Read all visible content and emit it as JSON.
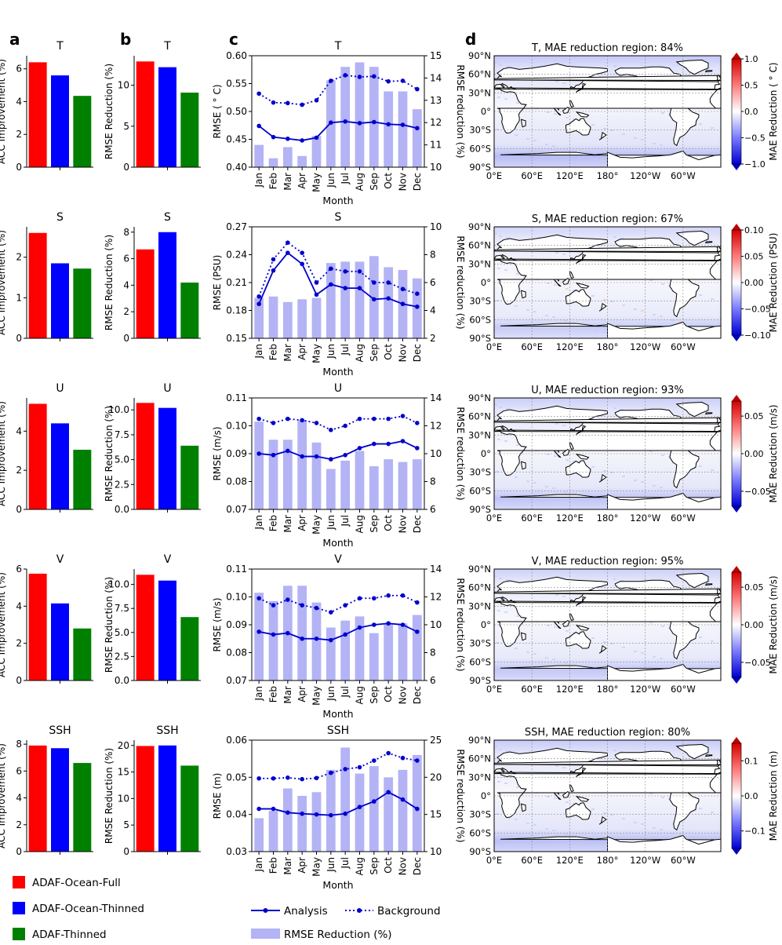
{
  "figure": {
    "panel_labels": [
      "a",
      "b",
      "c",
      "d"
    ],
    "variables": [
      "T",
      "S",
      "U",
      "V",
      "SSH"
    ],
    "legend_bars": [
      "ADAF-Ocean-Full",
      "ADAF-Ocean-Thinned",
      "ADAF-Thinned"
    ],
    "legend_lines": {
      "analysis": "Analysis",
      "background": "Background",
      "reduction": "RMSE Reduction (%)"
    },
    "month_label": "Month",
    "acc_ylabel": "ACC Improvement (%)",
    "rmse_bar_ylabel": "RMSE Reduction (%)",
    "rmse_right_ylabel": "RMSE reduction (%)",
    "map_lat_labels": [
      "90°N",
      "60°N",
      "30°N",
      "0°",
      "30°S",
      "60°S",
      "90°S"
    ],
    "map_lon_labels": [
      "0°E",
      "60°E",
      "120°E",
      "180°",
      "120°W",
      "60°W"
    ]
  },
  "colors": {
    "full": "#ff0000",
    "thinned": "#0000ff",
    "adaf_thinned": "#008000",
    "reduction_bar": "#b3b3f5",
    "line": "#0000cc"
  },
  "chart_data": [
    {
      "type": "bar",
      "panel": "a",
      "title": "T",
      "ylabel": "ACC Improvement (%)",
      "categories": [
        "ADAF-Ocean-Full",
        "ADAF-Ocean-Thinned",
        "ADAF-Thinned"
      ],
      "values": [
        6.4,
        5.6,
        4.35
      ],
      "ylim": [
        0,
        6.8
      ],
      "yticks": [
        0,
        2,
        4,
        6
      ]
    },
    {
      "type": "bar",
      "panel": "b",
      "title": "T",
      "ylabel": "RMSE Reduction (%)",
      "categories": [
        "ADAF-Ocean-Full",
        "ADAF-Ocean-Thinned",
        "ADAF-Thinned"
      ],
      "values": [
        12.9,
        12.2,
        9.1
      ],
      "ylim": [
        0,
        13.6
      ],
      "yticks": [
        0,
        5,
        10
      ]
    },
    {
      "type": "line+bar",
      "panel": "c",
      "title": "T",
      "ylabel": "RMSE ( ° C)",
      "ylabel2": "RMSE reduction (%)",
      "categories": [
        "Jan",
        "Feb",
        "Mar",
        "Apr",
        "May",
        "Jun",
        "Jul",
        "Aug",
        "Sep",
        "Oct",
        "Nov",
        "Dec"
      ],
      "ylim": [
        0.4,
        0.6
      ],
      "yticks": [
        "0.40",
        "0.45",
        "0.50",
        "0.55",
        "0.60"
      ],
      "y2lim": [
        10,
        15
      ],
      "y2ticks": [
        "10",
        "11",
        "12",
        "13",
        "14",
        "15"
      ],
      "analysis": [
        0.474,
        0.454,
        0.451,
        0.448,
        0.453,
        0.48,
        0.482,
        0.479,
        0.481,
        0.477,
        0.476,
        0.47
      ],
      "background": [
        0.532,
        0.516,
        0.515,
        0.512,
        0.52,
        0.555,
        0.565,
        0.562,
        0.563,
        0.554,
        0.555,
        0.54
      ],
      "reduction": [
        11.0,
        10.4,
        10.9,
        10.5,
        11.4,
        13.9,
        14.5,
        14.7,
        14.5,
        13.4,
        13.4,
        12.6
      ]
    },
    {
      "type": "heatmap-map",
      "panel": "d",
      "title": "T, MAE reduction region: 84%",
      "colorbar_label": "MAE Reduction ( ° C)",
      "clim": [
        -1.0,
        1.0
      ],
      "colorbar_ticks": [
        "1.0",
        "0.5",
        "0.0",
        "−0.5",
        "−1.0"
      ],
      "intensity": 0.35
    },
    {
      "type": "bar",
      "panel": "a",
      "title": "S",
      "ylabel": "ACC Improvement (%)",
      "categories": [
        "ADAF-Ocean-Full",
        "ADAF-Ocean-Thinned",
        "ADAF-Thinned"
      ],
      "values": [
        2.6,
        1.85,
        1.72
      ],
      "ylim": [
        0,
        2.75
      ],
      "yticks": [
        0,
        1,
        2
      ]
    },
    {
      "type": "bar",
      "panel": "b",
      "title": "S",
      "ylabel": "RMSE Reduction (%)",
      "categories": [
        "ADAF-Ocean-Full",
        "ADAF-Ocean-Thinned",
        "ADAF-Thinned"
      ],
      "values": [
        6.7,
        8.0,
        4.2
      ],
      "ylim": [
        0,
        8.4
      ],
      "yticks": [
        0,
        2,
        4,
        6,
        8
      ]
    },
    {
      "type": "line+bar",
      "panel": "c",
      "title": "S",
      "ylabel": "RMSE (PSU)",
      "ylabel2": "RMSE reduction (%)",
      "categories": [
        "Jan",
        "Feb",
        "Mar",
        "Apr",
        "May",
        "Jun",
        "Jul",
        "Aug",
        "Sep",
        "Oct",
        "Nov",
        "Dec"
      ],
      "ylim": [
        0.15,
        0.27
      ],
      "yticks": [
        "0.15",
        "0.18",
        "0.21",
        "0.24",
        "0.27"
      ],
      "y2lim": [
        2,
        10
      ],
      "y2ticks": [
        "2",
        "4",
        "6",
        "8",
        "10"
      ],
      "analysis": [
        0.187,
        0.223,
        0.242,
        0.23,
        0.197,
        0.208,
        0.204,
        0.204,
        0.192,
        0.193,
        0.187,
        0.184
      ],
      "background": [
        0.195,
        0.235,
        0.253,
        0.242,
        0.21,
        0.225,
        0.222,
        0.222,
        0.21,
        0.21,
        0.203,
        0.198
      ],
      "reduction": [
        4.9,
        5.0,
        4.6,
        4.8,
        4.9,
        7.4,
        7.5,
        7.5,
        7.9,
        7.1,
        6.9,
        6.3
      ]
    },
    {
      "type": "heatmap-map",
      "panel": "d",
      "title": "S, MAE reduction region: 67%",
      "colorbar_label": "MAE Reduction (PSU)",
      "clim": [
        -0.1,
        0.1
      ],
      "colorbar_ticks": [
        "0.10",
        "0.05",
        "0.00",
        "−0.05",
        "−0.10"
      ],
      "intensity": 0.15
    },
    {
      "type": "bar",
      "panel": "a",
      "title": "U",
      "ylabel": "ACC Improvement (%)",
      "categories": [
        "ADAF-Ocean-Full",
        "ADAF-Ocean-Thinned",
        "ADAF-Thinned"
      ],
      "values": [
        5.4,
        4.4,
        3.05
      ],
      "ylim": [
        0,
        5.7
      ],
      "yticks": [
        0,
        2,
        4
      ]
    },
    {
      "type": "bar",
      "panel": "b",
      "title": "U",
      "ylabel": "RMSE Reduction (%)",
      "categories": [
        "ADAF-Ocean-Full",
        "ADAF-Ocean-Thinned",
        "ADAF-Thinned"
      ],
      "values": [
        10.7,
        10.2,
        6.4
      ],
      "ylim": [
        0,
        11.2
      ],
      "yticks": [
        "0.0",
        "2.5",
        "5.0",
        "7.5",
        "10.0"
      ]
    },
    {
      "type": "line+bar",
      "panel": "c",
      "title": "U",
      "ylabel": "RMSE (m/s)",
      "ylabel2": "RMSE reduction (%)",
      "categories": [
        "Jan",
        "Feb",
        "Mar",
        "Apr",
        "May",
        "Jun",
        "Jul",
        "Aug",
        "Sep",
        "Oct",
        "Nov",
        "Dec"
      ],
      "ylim": [
        0.07,
        0.11
      ],
      "yticks": [
        "0.07",
        "0.08",
        "0.09",
        "0.10",
        "0.11"
      ],
      "y2lim": [
        6,
        14
      ],
      "y2ticks": [
        "6",
        "8",
        "10",
        "12",
        "14"
      ],
      "analysis": [
        0.09,
        0.0895,
        0.091,
        0.089,
        0.089,
        0.088,
        0.0895,
        0.092,
        0.0935,
        0.0935,
        0.0945,
        0.092
      ],
      "background": [
        0.1025,
        0.101,
        0.1025,
        0.102,
        0.101,
        0.0985,
        0.1,
        0.1025,
        0.1025,
        0.1025,
        0.1035,
        0.101
      ],
      "reduction": [
        12.3,
        11.0,
        11.0,
        12.4,
        10.8,
        8.9,
        9.5,
        10.2,
        9.1,
        9.6,
        9.4,
        9.6
      ]
    },
    {
      "type": "heatmap-map",
      "panel": "d",
      "title": "U, MAE reduction region: 93%",
      "colorbar_label": "MAE Reduction (m/s)",
      "clim": [
        -0.07,
        0.07
      ],
      "colorbar_ticks": [
        "0.05",
        "0.00",
        "−0.05"
      ],
      "intensity": 0.25
    },
    {
      "type": "bar",
      "panel": "a",
      "title": "V",
      "ylabel": "ACC Improvement (%)",
      "categories": [
        "ADAF-Ocean-Full",
        "ADAF-Ocean-Thinned",
        "ADAF-Thinned"
      ],
      "values": [
        5.75,
        4.15,
        2.8
      ],
      "ylim": [
        0,
        6.0
      ],
      "yticks": [
        0,
        2,
        4,
        6
      ]
    },
    {
      "type": "bar",
      "panel": "b",
      "title": "V",
      "ylabel": "RMSE Reduction (%)",
      "categories": [
        "ADAF-Ocean-Full",
        "ADAF-Ocean-Thinned",
        "ADAF-Thinned"
      ],
      "values": [
        11.0,
        10.4,
        6.6
      ],
      "ylim": [
        0,
        11.6
      ],
      "yticks": [
        "0.0",
        "2.5",
        "5.0",
        "7.5",
        "10.0"
      ]
    },
    {
      "type": "line+bar",
      "panel": "c",
      "title": "V",
      "ylabel": "RMSE (m/s)",
      "ylabel2": "RMSE reduction (%)",
      "categories": [
        "Jan",
        "Feb",
        "Mar",
        "Apr",
        "May",
        "Jun",
        "Jul",
        "Aug",
        "Sep",
        "Oct",
        "Nov",
        "Dec"
      ],
      "ylim": [
        0.07,
        0.11
      ],
      "yticks": [
        "0.07",
        "0.08",
        "0.09",
        "0.10",
        "0.11"
      ],
      "y2lim": [
        6,
        14
      ],
      "y2ticks": [
        "6",
        "8",
        "10",
        "12",
        "14"
      ],
      "analysis": [
        0.0875,
        0.0865,
        0.087,
        0.085,
        0.085,
        0.0845,
        0.0865,
        0.089,
        0.09,
        0.0905,
        0.09,
        0.0875
      ],
      "background": [
        0.0995,
        0.097,
        0.099,
        0.097,
        0.096,
        0.0945,
        0.097,
        0.0995,
        0.0995,
        0.1005,
        0.1005,
        0.098
      ],
      "reduction": [
        12.3,
        11.7,
        12.8,
        12.8,
        11.6,
        9.8,
        10.3,
        10.6,
        9.4,
        10.1,
        10.1,
        10.7
      ]
    },
    {
      "type": "heatmap-map",
      "panel": "d",
      "title": "V, MAE reduction region: 95%",
      "colorbar_label": "MAE Reduction (m/s)",
      "clim": [
        -0.07,
        0.07
      ],
      "colorbar_ticks": [
        "0.05",
        "0.00",
        "−0.05"
      ],
      "intensity": 0.2
    },
    {
      "type": "bar",
      "panel": "a",
      "title": "SSH",
      "ylabel": "ACC Improvement (%)",
      "categories": [
        "ADAF-Ocean-Full",
        "ADAF-Ocean-Thinned",
        "ADAF-Thinned"
      ],
      "values": [
        7.9,
        7.7,
        6.6
      ],
      "ylim": [
        0,
        8.3
      ],
      "yticks": [
        0,
        2,
        4,
        6,
        8
      ]
    },
    {
      "type": "bar",
      "panel": "b",
      "title": "SSH",
      "ylabel": "RMSE Reduction (%)",
      "categories": [
        "ADAF-Ocean-Full",
        "ADAF-Ocean-Thinned",
        "ADAF-Thinned"
      ],
      "values": [
        19.9,
        20.0,
        16.2
      ],
      "ylim": [
        0,
        21
      ],
      "yticks": [
        0,
        5,
        10,
        15,
        20
      ]
    },
    {
      "type": "line+bar",
      "panel": "c",
      "title": "SSH",
      "ylabel": "RMSE (m)",
      "ylabel2": "RMSE reduction (%)",
      "categories": [
        "Jan",
        "Feb",
        "Mar",
        "Apr",
        "May",
        "Jun",
        "Jul",
        "Aug",
        "Sep",
        "Oct",
        "Nov",
        "Dec"
      ],
      "ylim": [
        0.03,
        0.06
      ],
      "yticks": [
        "0.03",
        "0.04",
        "0.05",
        "0.06"
      ],
      "y2lim": [
        10,
        25
      ],
      "y2ticks": [
        "10",
        "15",
        "20",
        "25"
      ],
      "analysis": [
        0.0415,
        0.0415,
        0.0405,
        0.0402,
        0.04,
        0.0398,
        0.0402,
        0.042,
        0.0435,
        0.046,
        0.044,
        0.0415
      ],
      "background": [
        0.0497,
        0.0497,
        0.0499,
        0.0495,
        0.0498,
        0.0512,
        0.0522,
        0.0527,
        0.0545,
        0.0565,
        0.0552,
        0.0545
      ],
      "reduction": [
        14.5,
        15.5,
        18.5,
        17.5,
        18.0,
        21.0,
        24.0,
        20.5,
        21.5,
        20.0,
        21.0,
        23.0
      ]
    },
    {
      "type": "heatmap-map",
      "panel": "d",
      "title": "SSH, MAE reduction region: 80%",
      "colorbar_label": "MAE Reduction (m)",
      "clim": [
        -0.15,
        0.15
      ],
      "colorbar_ticks": [
        "0.1",
        "0.0",
        "−0.1"
      ],
      "intensity": 0.3
    }
  ]
}
